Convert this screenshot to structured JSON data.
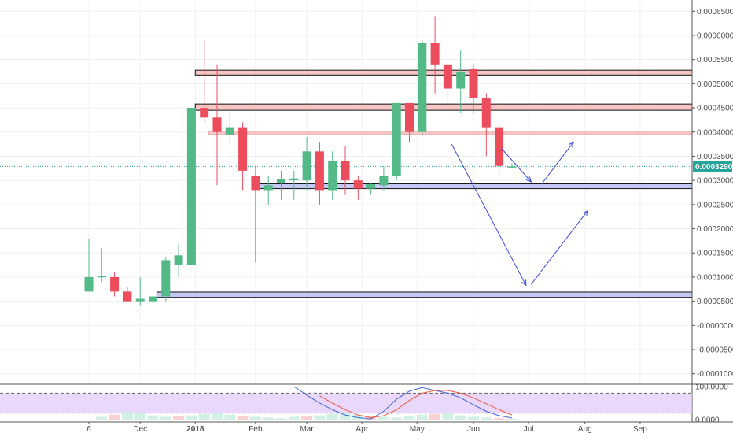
{
  "chart_data": {
    "type": "candlestick",
    "price_axis": {
      "ylim": [
        -0.00012,
        0.00067
      ],
      "ticks": [
        {
          "value": 0.00065,
          "label": "0.00065000"
        },
        {
          "value": 0.0006,
          "label": "0.00060000"
        },
        {
          "value": 0.00055,
          "label": "0.00055000"
        },
        {
          "value": 0.0005,
          "label": "0.00050000"
        },
        {
          "value": 0.00045,
          "label": "0.00045000"
        },
        {
          "value": 0.0004,
          "label": "0.00040000"
        },
        {
          "value": 0.00035,
          "label": "0.00035000"
        },
        {
          "value": 0.0003,
          "label": "0.00030000"
        },
        {
          "value": 0.00025,
          "label": "0.00025000"
        },
        {
          "value": 0.0002,
          "label": "0.00020000"
        },
        {
          "value": 0.00015,
          "label": "0.00015000"
        },
        {
          "value": 0.0001,
          "label": "0.00010000"
        },
        {
          "value": 5e-05,
          "label": "0.00005000"
        },
        {
          "value": 0.0,
          "label": "-0.00000000"
        },
        {
          "value": -5e-05,
          "label": "-0.00005000"
        },
        {
          "value": -0.0001,
          "label": "-0.00010000"
        }
      ],
      "last_price": 0.00032902,
      "last_price_label": "0.00032902",
      "colors": {
        "up": "#53b987",
        "down": "#eb4d5c",
        "price_tag": "#26a69a",
        "zone_red_fill": "#f7c5c5",
        "zone_blue_fill": "#c5c8f5",
        "arrow": "#3b4bd8"
      }
    },
    "x_labels": [
      {
        "week": 0,
        "label": "6"
      },
      {
        "week": 4,
        "label": "Dec"
      },
      {
        "week": 8.3,
        "label": "2018",
        "bold": true
      },
      {
        "week": 13,
        "label": "Feb"
      },
      {
        "week": 17,
        "label": "Mar"
      },
      {
        "week": 21.3,
        "label": "Apr"
      },
      {
        "week": 25.6,
        "label": "May"
      },
      {
        "week": 30,
        "label": "Jun"
      },
      {
        "week": 34.3,
        "label": "Jul"
      },
      {
        "week": 38.7,
        "label": "Aug"
      },
      {
        "week": 43,
        "label": "Sep"
      }
    ],
    "candles": [
      {
        "o": 7e-05,
        "h": 0.00018,
        "l": 7e-05,
        "c": 0.0001
      },
      {
        "o": 0.0001,
        "h": 0.00016,
        "l": 9e-05,
        "c": 0.000102
      },
      {
        "o": 0.0001,
        "h": 0.00011,
        "l": 6e-05,
        "c": 7e-05
      },
      {
        "o": 7e-05,
        "h": 8e-05,
        "l": 5e-05,
        "c": 5e-05
      },
      {
        "o": 5e-05,
        "h": 0.0001,
        "l": 4e-05,
        "c": 5.5e-05
      },
      {
        "o": 5e-05,
        "h": 8e-05,
        "l": 4e-05,
        "c": 6e-05
      },
      {
        "o": 6e-05,
        "h": 0.00014,
        "l": 5e-05,
        "c": 0.000135
      },
      {
        "o": 0.000125,
        "h": 0.00017,
        "l": 0.0001,
        "c": 0.000145
      },
      {
        "o": 0.000125,
        "h": 0.00045,
        "l": 0.00013,
        "c": 0.00045
      },
      {
        "o": 0.00045,
        "h": 0.00059,
        "l": 0.00042,
        "c": 0.00043
      },
      {
        "o": 0.00043,
        "h": 0.00054,
        "l": 0.00029,
        "c": 0.0004
      },
      {
        "o": 0.000395,
        "h": 0.00045,
        "l": 0.00038,
        "c": 0.00041
      },
      {
        "o": 0.00041,
        "h": 0.00042,
        "l": 0.00028,
        "c": 0.00032
      },
      {
        "o": 0.00031,
        "h": 0.00033,
        "l": 0.00013,
        "c": 0.00028
      },
      {
        "o": 0.00028,
        "h": 0.00031,
        "l": 0.00025,
        "c": 0.00029
      },
      {
        "o": 0.000295,
        "h": 0.00032,
        "l": 0.00026,
        "c": 0.000302
      },
      {
        "o": 0.0003,
        "h": 0.00032,
        "l": 0.00026,
        "c": 0.000304
      },
      {
        "o": 0.0003,
        "h": 0.00039,
        "l": 0.00028,
        "c": 0.00036
      },
      {
        "o": 0.00036,
        "h": 0.00038,
        "l": 0.00025,
        "c": 0.00028
      },
      {
        "o": 0.00028,
        "h": 0.00036,
        "l": 0.00026,
        "c": 0.00034
      },
      {
        "o": 0.00034,
        "h": 0.00037,
        "l": 0.00027,
        "c": 0.0003
      },
      {
        "o": 0.0003,
        "h": 0.00031,
        "l": 0.00026,
        "c": 0.000283
      },
      {
        "o": 0.000283,
        "h": 0.000295,
        "l": 0.00027,
        "c": 0.000292
      },
      {
        "o": 0.00029,
        "h": 0.00033,
        "l": 0.00028,
        "c": 0.00031
      },
      {
        "o": 0.00031,
        "h": 0.00046,
        "l": 0.0003,
        "c": 0.00046
      },
      {
        "o": 0.00046,
        "h": 0.00046,
        "l": 0.00038,
        "c": 0.0004
      },
      {
        "o": 0.0004,
        "h": 0.00059,
        "l": 0.00039,
        "c": 0.000585
      },
      {
        "o": 0.000585,
        "h": 0.00064,
        "l": 0.00048,
        "c": 0.00054
      },
      {
        "o": 0.00054,
        "h": 0.000545,
        "l": 0.00046,
        "c": 0.00049
      },
      {
        "o": 0.00049,
        "h": 0.00057,
        "l": 0.00044,
        "c": 0.000525
      },
      {
        "o": 0.00053,
        "h": 0.00054,
        "l": 0.00044,
        "c": 0.00047
      },
      {
        "o": 0.00047,
        "h": 0.00048,
        "l": 0.00035,
        "c": 0.00041
      },
      {
        "o": 0.00041,
        "h": 0.00042,
        "l": 0.00031,
        "c": 0.00033
      },
      {
        "o": 0.000327,
        "h": 0.000335,
        "l": 0.000325,
        "c": 0.000329
      }
    ],
    "zones": [
      {
        "color": "red",
        "from": 0.000518,
        "to": 0.000528,
        "start_week": 8.3,
        "end": "axis"
      },
      {
        "color": "red",
        "from": 0.000445,
        "to": 0.000458,
        "start_week": 8.3,
        "end": "axis"
      },
      {
        "color": "red",
        "from": 0.000394,
        "to": 0.000402,
        "start_week": 9.3,
        "end": "axis"
      },
      {
        "color": "blue",
        "from": 0.000283,
        "to": 0.000293,
        "start_week": 12.7,
        "end": "axis"
      },
      {
        "color": "blue",
        "from": 5.8e-05,
        "to": 6.9e-05,
        "start_week": 5.3,
        "end": "axis"
      }
    ],
    "arrows": [
      {
        "points": [
          {
            "week": 28.3,
            "price": 0.000375
          },
          {
            "week": 34.1,
            "price": 8.3e-05
          }
        ],
        "head": true
      },
      {
        "points": [
          {
            "week": 34.5,
            "price": 8.5e-05
          },
          {
            "week": 38.9,
            "price": 0.000237
          }
        ],
        "head": true
      },
      {
        "points": [
          {
            "week": 32.2,
            "price": 0.000366
          },
          {
            "week": 34.5,
            "price": 0.000297
          }
        ],
        "head": true
      },
      {
        "points": [
          {
            "week": 35.3,
            "price": 0.000292
          },
          {
            "week": 37.8,
            "price": 0.000379
          }
        ],
        "head": true
      }
    ],
    "indicator": {
      "ylim": [
        0,
        100
      ],
      "ticks": [
        {
          "value": 100,
          "label": "100.0000"
        },
        {
          "value": 0,
          "label": "0.0000"
        }
      ],
      "upper_band": 80,
      "lower_band": 20,
      "band_fill": "#e2c9fb",
      "line_k": {
        "color": "#3f63d6",
        "values": [
          null,
          null,
          null,
          null,
          null,
          null,
          null,
          null,
          null,
          null,
          null,
          null,
          null,
          null,
          null,
          null,
          100,
          74,
          50,
          30,
          14,
          6,
          2,
          25,
          62,
          86,
          97,
          88,
          80,
          66,
          45,
          25,
          12,
          5
        ]
      },
      "line_d": {
        "color": "#f05a3f",
        "values": [
          null,
          null,
          null,
          null,
          null,
          null,
          null,
          null,
          null,
          null,
          null,
          null,
          null,
          null,
          null,
          null,
          null,
          null,
          72,
          50,
          30,
          14,
          6,
          12,
          30,
          58,
          80,
          88,
          88,
          80,
          66,
          48,
          30,
          14
        ]
      },
      "histogram": [
        0,
        8,
        14,
        22,
        20,
        12,
        8,
        10,
        12,
        16,
        18,
        14,
        10,
        8,
        6,
        4,
        8,
        10,
        12,
        16,
        18,
        14,
        10,
        8,
        6,
        10,
        14,
        16,
        18,
        12,
        8,
        6,
        4,
        3
      ]
    }
  }
}
